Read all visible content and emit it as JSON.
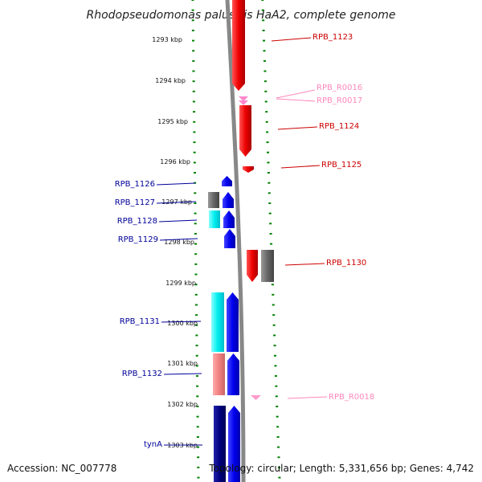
{
  "title": "Rhodopseudomonas palustris HaA2, complete genome",
  "footer": {
    "accession": "Accession: NC_007778",
    "topology": "Topology: circular; Length: 5,331,656 bp; Genes: 4,742"
  },
  "colors": {
    "forward_gene": "#ff0000",
    "forward_rna": "#ff99cc",
    "reverse_gene": "#0000ff",
    "forward_label": "#cc0000",
    "reverse_label": "#000099",
    "rna_label": "#ff88bb",
    "grid_tick": "#008000",
    "backbone": "#888888",
    "cds_gray": "#666666",
    "cds_cyan": "#00eeee",
    "cds_pink": "#f08080",
    "cds_navy": "#000080"
  },
  "scale": {
    "unit": "kbp",
    "ticks": [
      {
        "kbp": 1293,
        "label": "1293 kbp"
      },
      {
        "kbp": 1294,
        "label": "1294 kbp"
      },
      {
        "kbp": 1295,
        "label": "1295 kbp"
      },
      {
        "kbp": 1296,
        "label": "1296 kbp"
      },
      {
        "kbp": 1297,
        "label": "1297 kbp"
      },
      {
        "kbp": 1298,
        "label": "1298 kbp"
      },
      {
        "kbp": 1299,
        "label": "1299 kbp"
      },
      {
        "kbp": 1300,
        "label": "1300 kbp"
      },
      {
        "kbp": 1301,
        "label": "1301 kbp"
      },
      {
        "kbp": 1302,
        "label": "1302 kbp"
      },
      {
        "kbp": 1303,
        "label": "1303 kbp"
      }
    ]
  },
  "genes": [
    {
      "name": "RPB_1123",
      "strand": "forward",
      "type": "gene"
    },
    {
      "name": "RPB_R0016",
      "strand": "forward",
      "type": "rna"
    },
    {
      "name": "RPB_R0017",
      "strand": "forward",
      "type": "rna"
    },
    {
      "name": "RPB_1124",
      "strand": "forward",
      "type": "gene"
    },
    {
      "name": "RPB_1125",
      "strand": "forward",
      "type": "gene"
    },
    {
      "name": "RPB_1126",
      "strand": "reverse",
      "type": "gene"
    },
    {
      "name": "RPB_1127",
      "strand": "reverse",
      "type": "gene"
    },
    {
      "name": "RPB_1128",
      "strand": "reverse",
      "type": "gene"
    },
    {
      "name": "RPB_1129",
      "strand": "reverse",
      "type": "gene"
    },
    {
      "name": "RPB_1130",
      "strand": "forward",
      "type": "gene"
    },
    {
      "name": "RPB_1131",
      "strand": "reverse",
      "type": "gene"
    },
    {
      "name": "RPB_1132",
      "strand": "reverse",
      "type": "gene"
    },
    {
      "name": "RPB_R0018",
      "strand": "forward",
      "type": "rna"
    },
    {
      "name": "tynA",
      "strand": "reverse",
      "type": "gene"
    }
  ]
}
